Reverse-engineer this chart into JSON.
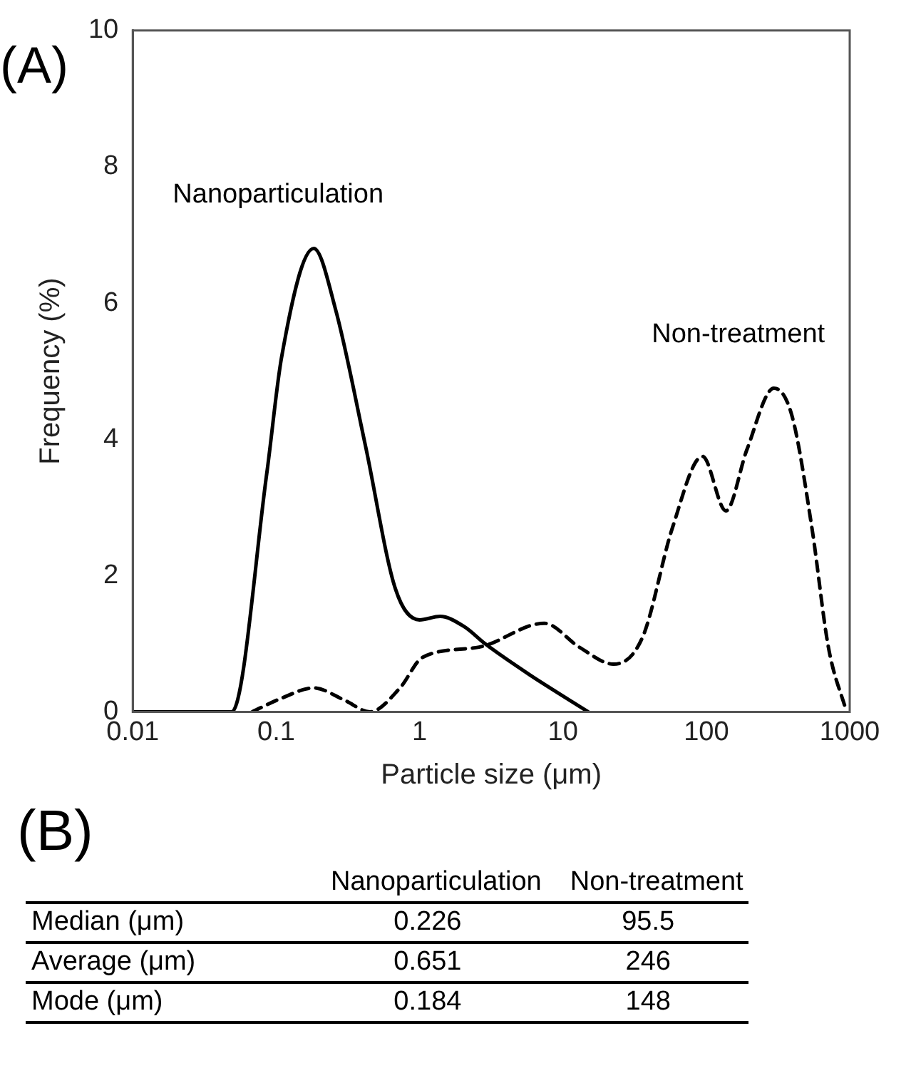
{
  "chart_data": [
    {
      "type": "line",
      "title": "(A)",
      "xlabel": "Particle size (μm)",
      "ylabel": "Frequency (%)",
      "log": "x",
      "xlim": [
        0.01,
        1000
      ],
      "xticks": [
        0.01,
        0.1,
        1,
        10,
        100,
        1000
      ],
      "ylim": [
        0,
        10
      ],
      "yticks": [
        0,
        2,
        4,
        6,
        8,
        10
      ],
      "grid": false,
      "legend": false,
      "marker": "none",
      "series": [
        {
          "name": "Nanoparticulation",
          "color": "#000000",
          "line_style": "solid",
          "x": [
            0.01,
            0.049,
            0.086,
            0.109,
            0.183,
            0.26,
            0.42,
            0.68,
            1.0,
            1.39,
            2.05,
            2.86,
            5.8,
            15
          ],
          "values": [
            0,
            0,
            3.5,
            5.2,
            6.8,
            5.9,
            3.9,
            1.8,
            1.35,
            1.4,
            1.25,
            1.0,
            0.55,
            0
          ]
        },
        {
          "name": "Non-treatment",
          "color": "#000000",
          "line_style": "dashed",
          "x": [
            0.068,
            0.109,
            0.183,
            0.3,
            0.45,
            0.73,
            1.05,
            2.6,
            7.4,
            13,
            22.5,
            36,
            58,
            94,
            137,
            192,
            296,
            395,
            545,
            710,
            950
          ],
          "values": [
            0,
            0.2,
            0.35,
            0.17,
            0,
            0.35,
            0.8,
            0.95,
            1.3,
            0.95,
            0.7,
            1.1,
            2.7,
            3.75,
            2.95,
            3.85,
            4.75,
            4.35,
            2.7,
            0.95,
            0
          ]
        }
      ]
    },
    {
      "type": "other",
      "title": "(B)",
      "categories": [
        "Nanoparticulation",
        "Non-treatment"
      ],
      "y_categories": [
        "Median (μm)",
        "Average (μm)",
        "Mode (μm)"
      ],
      "cell_labels": [
        [
          "0.226",
          "95.5"
        ],
        [
          "0.651",
          "246"
        ],
        [
          "0.184",
          "148"
        ]
      ]
    }
  ]
}
